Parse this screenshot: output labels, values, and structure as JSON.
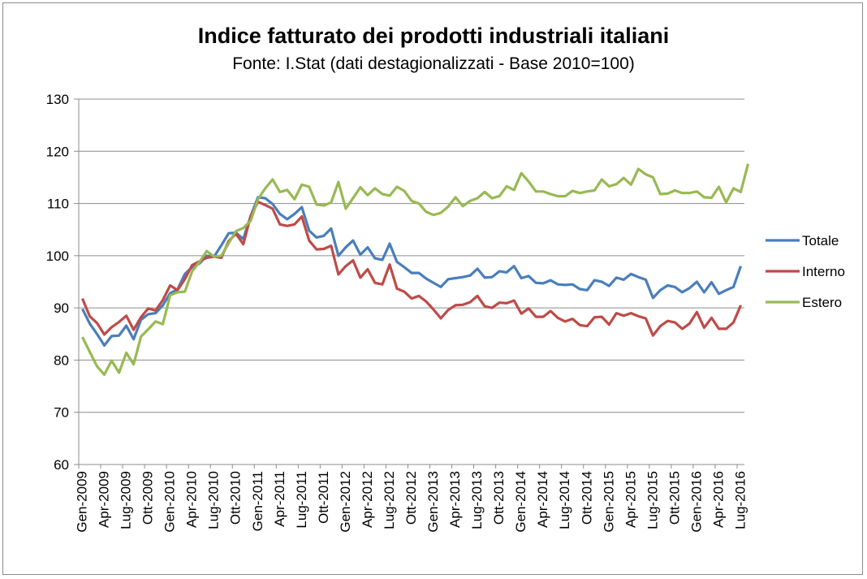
{
  "chart_data": {
    "type": "line",
    "title": "Indice fatturato  dei prodotti industriali italiani",
    "subtitle": "Fonte: I.Stat (dati destagionalizzati - Base 2010=100)",
    "xlabel": "",
    "ylabel": "",
    "ylim": [
      60,
      130
    ],
    "yticks": [
      60,
      70,
      80,
      90,
      100,
      110,
      120,
      130
    ],
    "grid": "horizontal",
    "legend": "right",
    "x_tick_labels": [
      "Gen-2009",
      "Apr-2009",
      "Lug-2009",
      "Ott-2009",
      "Gen-2010",
      "Apr-2010",
      "Lug-2010",
      "Ott-2010",
      "Gen-2011",
      "Apr-2011",
      "Lug-2011",
      "Ott-2011",
      "Gen-2012",
      "Apr-2012",
      "Lug-2012",
      "Ott-2012",
      "Gen-2013",
      "Apr-2013",
      "Lug-2013",
      "Ott-2013",
      "Gen-2014",
      "Apr-2014",
      "Lug-2014",
      "Ott-2014",
      "Gen-2015",
      "Apr-2015",
      "Lug-2015",
      "Ott-2015",
      "Gen-2016",
      "Apr-2016",
      "Lug-2016"
    ],
    "series": [
      {
        "name": "Totale",
        "color": "#4a7ebb",
        "values": [
          89.8,
          87.0,
          85.0,
          82.8,
          84.6,
          84.7,
          86.6,
          84.0,
          87.7,
          88.8,
          89.0,
          90.5,
          92.8,
          93.5,
          96.5,
          97.8,
          98.5,
          100.0,
          99.8,
          102.0,
          104.3,
          104.4,
          103.2,
          107.6,
          111.2,
          111.0,
          109.9,
          108.0,
          107.0,
          108.0,
          109.3,
          104.8,
          103.5,
          103.8,
          105.2,
          100.0,
          101.6,
          102.9,
          100.2,
          101.6,
          99.5,
          99.2,
          102.3,
          98.8,
          97.8,
          96.7,
          96.7,
          95.6,
          94.8,
          94.0,
          95.5,
          95.7,
          95.9,
          96.2,
          97.5,
          95.8,
          95.9,
          97.0,
          96.8,
          98.0,
          95.7,
          96.1,
          94.8,
          94.7,
          95.3,
          94.5,
          94.4,
          94.5,
          93.6,
          93.4,
          95.3,
          95.0,
          94.2,
          95.8,
          95.4,
          96.5,
          95.9,
          95.4,
          91.9,
          93.4,
          94.3,
          94.0,
          93.0,
          93.8,
          95.0,
          93.0,
          94.9,
          92.7,
          93.4,
          94.0,
          98.0
        ]
      },
      {
        "name": "Interno",
        "color": "#be4b48",
        "values": [
          91.8,
          88.4,
          87.1,
          84.9,
          86.3,
          87.3,
          88.5,
          85.8,
          88.2,
          89.9,
          89.5,
          91.5,
          94.3,
          93.4,
          95.5,
          98.2,
          98.9,
          99.6,
          99.8,
          99.6,
          102.8,
          104.2,
          102.2,
          107.6,
          110.3,
          109.7,
          109.0,
          106.0,
          105.7,
          106.0,
          107.5,
          102.9,
          101.2,
          101.3,
          101.9,
          96.4,
          98.0,
          99.1,
          95.8,
          97.4,
          94.8,
          94.5,
          98.3,
          93.7,
          93.1,
          91.8,
          92.3,
          91.2,
          89.7,
          88.0,
          89.6,
          90.5,
          90.6,
          91.1,
          92.3,
          90.3,
          90.0,
          91.0,
          90.9,
          91.4,
          88.9,
          89.9,
          88.3,
          88.3,
          89.4,
          88.1,
          87.4,
          87.9,
          86.7,
          86.5,
          88.2,
          88.3,
          86.8,
          89.0,
          88.5,
          89.0,
          88.4,
          88.0,
          84.7,
          86.5,
          87.5,
          87.2,
          86.0,
          87.0,
          89.2,
          86.2,
          88.1,
          86.0,
          86.0,
          87.2,
          90.5
        ]
      },
      {
        "name": "Estero",
        "color": "#98b954",
        "values": [
          84.4,
          81.6,
          78.8,
          77.2,
          79.9,
          77.6,
          81.4,
          79.2,
          84.5,
          85.9,
          87.4,
          86.9,
          92.4,
          93.0,
          93.1,
          97.0,
          98.8,
          100.9,
          99.8,
          100.0,
          102.4,
          104.7,
          105.3,
          106.7,
          110.8,
          112.9,
          114.6,
          112.2,
          112.6,
          110.8,
          113.6,
          113.2,
          109.8,
          109.6,
          110.2,
          114.1,
          109.0,
          111.0,
          113.1,
          111.6,
          112.9,
          111.8,
          111.5,
          113.2,
          112.4,
          110.5,
          110.0,
          108.4,
          107.8,
          108.2,
          109.4,
          111.2,
          109.5,
          110.5,
          111.0,
          112.2,
          111.0,
          111.4,
          113.3,
          112.6,
          115.8,
          114.2,
          112.3,
          112.3,
          111.8,
          111.4,
          111.4,
          112.4,
          112.0,
          112.3,
          112.5,
          114.6,
          113.3,
          113.7,
          114.9,
          113.6,
          116.6,
          115.6,
          115.0,
          111.8,
          111.9,
          112.5,
          112.0,
          112.0,
          112.3,
          111.2,
          111.1,
          113.2,
          110.2,
          112.9,
          112.2,
          117.6
        ]
      }
    ]
  }
}
